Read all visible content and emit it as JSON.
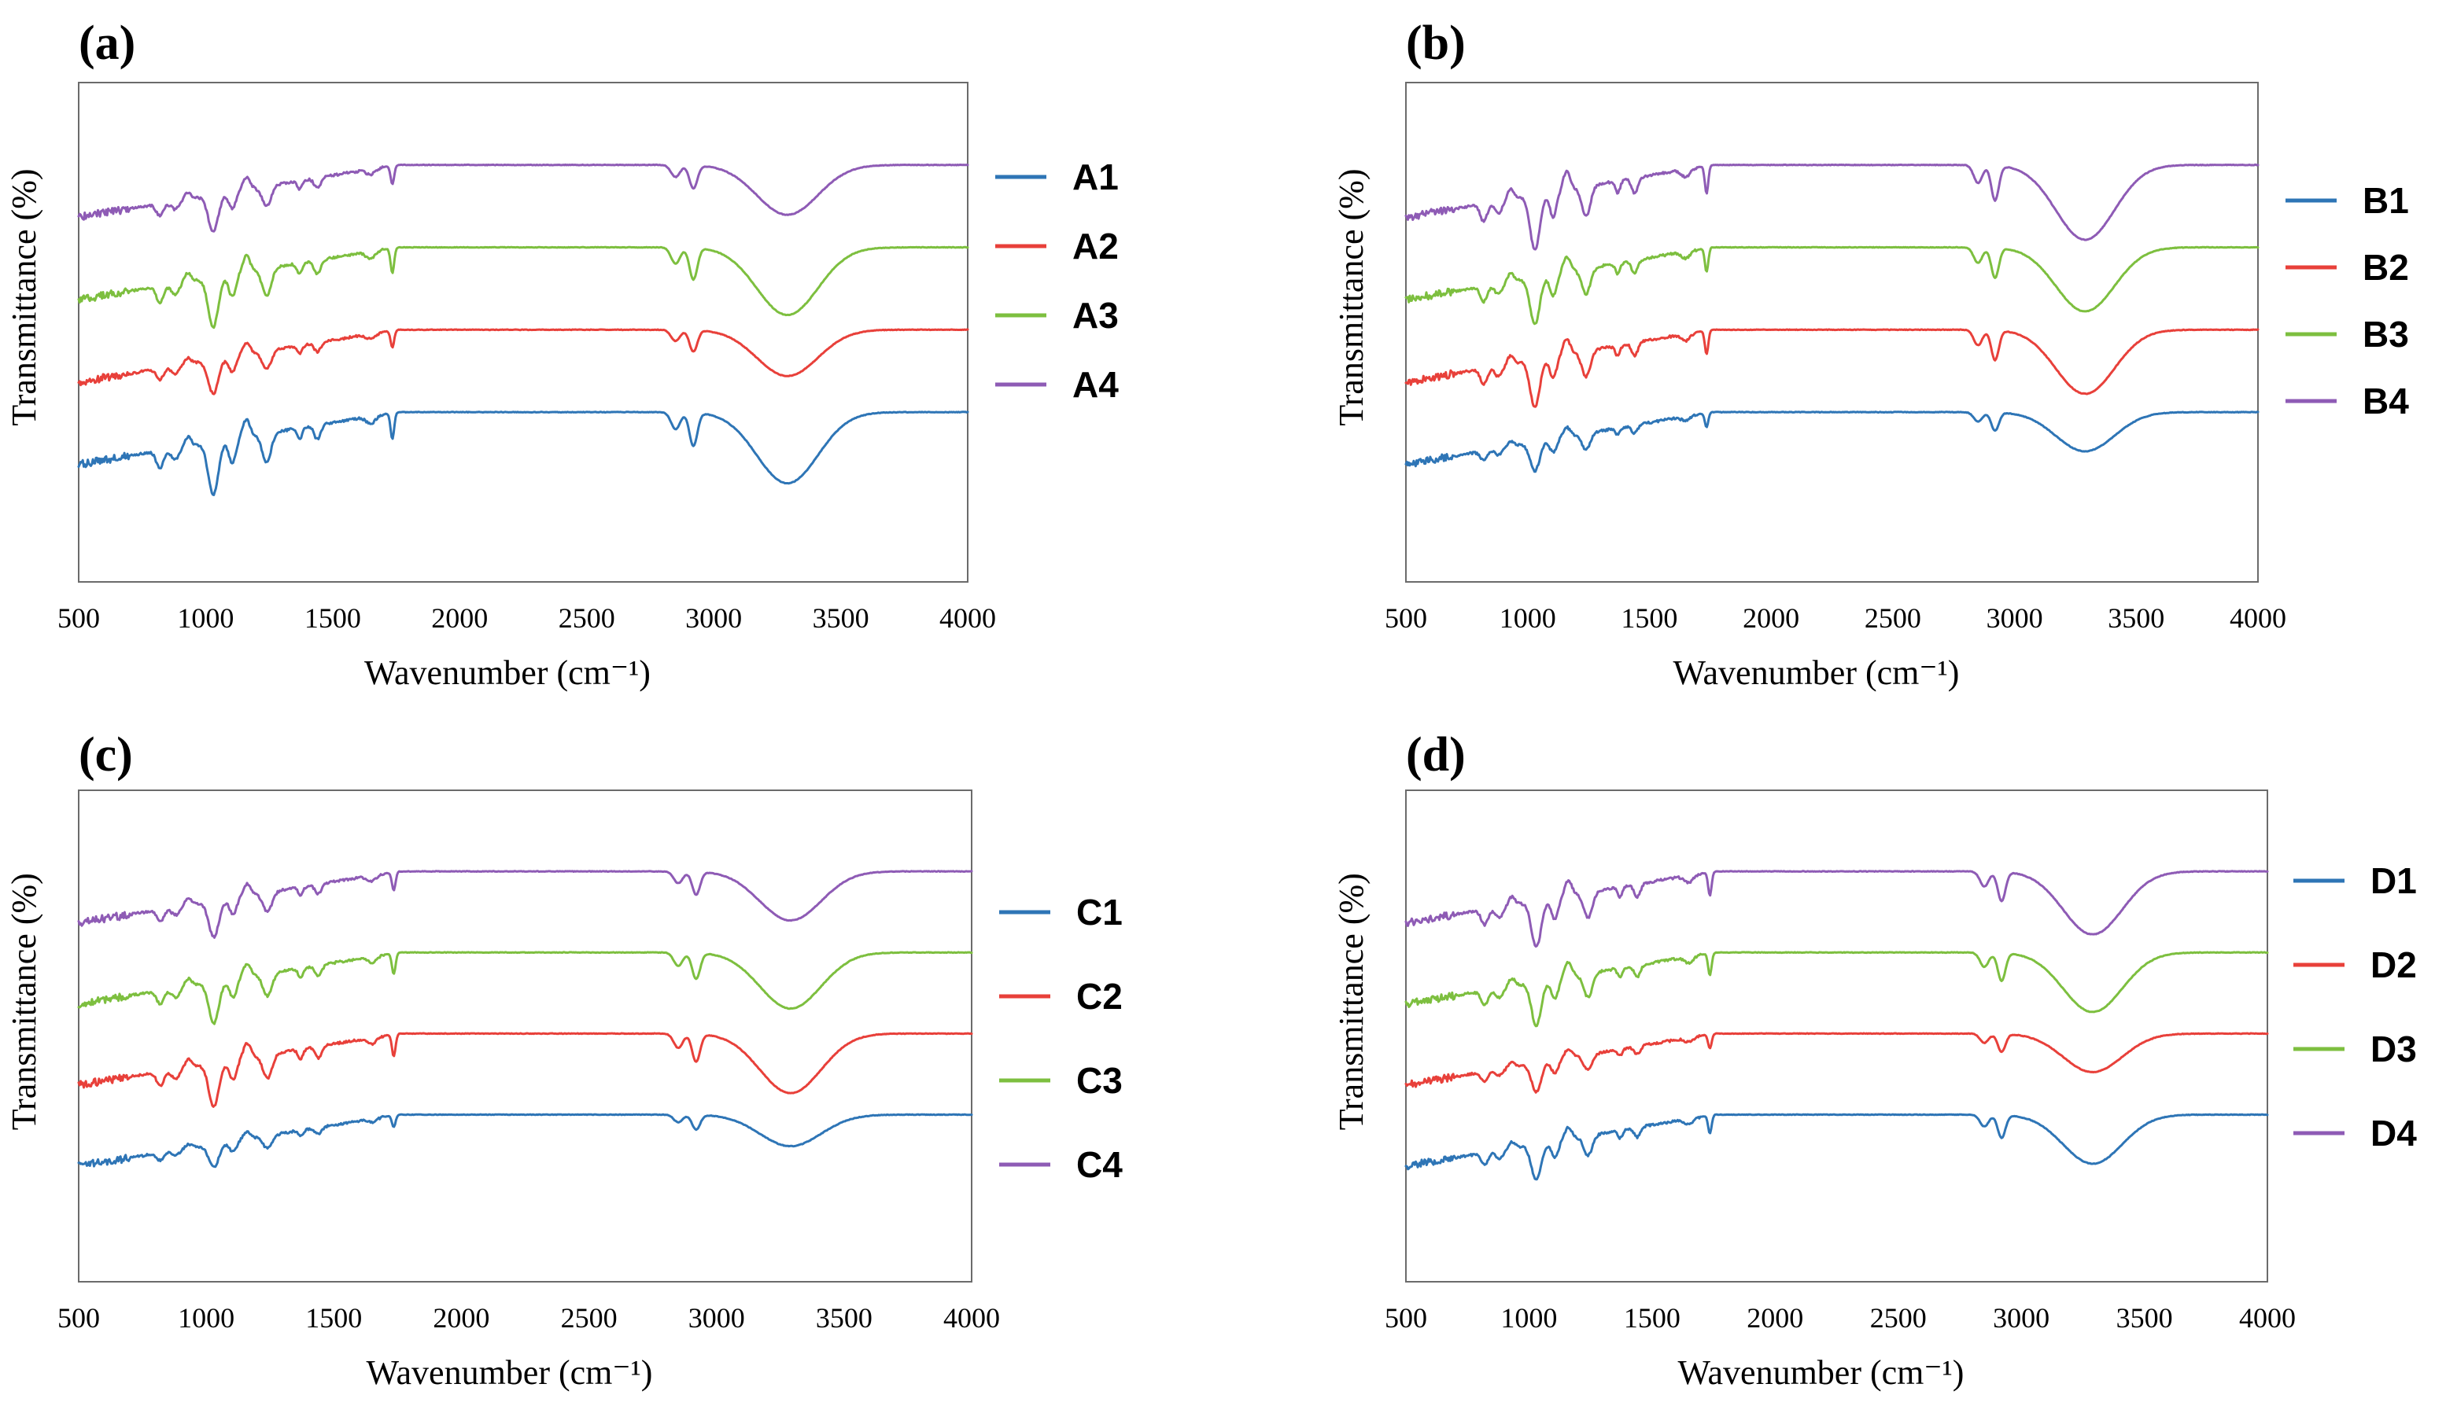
{
  "colors": {
    "series1": "#2e75b6",
    "series2": "#e8403a",
    "series3": "#7dbf3f",
    "series4": "#8e5bb5"
  },
  "chart_data": [
    {
      "type": "line",
      "panel_label": "(a)",
      "xlabel": "Wavenumber (cm⁻¹)",
      "ylabel": "Transmittance (%)",
      "xlim": [
        500,
        4000
      ],
      "xticks": [
        "500",
        "1000",
        "1500",
        "2000",
        "2500",
        "3000",
        "3500",
        "4000"
      ],
      "legend_position": "right",
      "series": [
        {
          "name": "A1",
          "color": "#2e75b6",
          "baseline": 0.0
        },
        {
          "name": "A2",
          "color": "#e8403a",
          "baseline": 1.0
        },
        {
          "name": "A3",
          "color": "#7dbf3f",
          "baseline": 2.0
        },
        {
          "name": "A4",
          "color": "#8e5bb5",
          "baseline": 3.0
        }
      ]
    },
    {
      "type": "line",
      "panel_label": "(b)",
      "xlabel": "Wavenumber (cm⁻¹)",
      "ylabel": "Transmittance (%)",
      "xlim": [
        500,
        4000
      ],
      "xticks": [
        "500",
        "1000",
        "1500",
        "2000",
        "2500",
        "3000",
        "3500",
        "4000"
      ],
      "legend_position": "right",
      "series": [
        {
          "name": "B1",
          "color": "#2e75b6",
          "baseline": 0.0
        },
        {
          "name": "B2",
          "color": "#e8403a",
          "baseline": 1.0
        },
        {
          "name": "B3",
          "color": "#7dbf3f",
          "baseline": 2.0
        },
        {
          "name": "B4",
          "color": "#8e5bb5",
          "baseline": 3.0
        }
      ]
    },
    {
      "type": "line",
      "panel_label": "(c)",
      "xlabel": "Wavenumber (cm⁻¹)",
      "ylabel": "Transmittance (%)",
      "xlim": [
        500,
        4000
      ],
      "xticks": [
        "500",
        "1000",
        "1500",
        "2000",
        "2500",
        "3000",
        "3500",
        "4000"
      ],
      "legend_position": "right",
      "series": [
        {
          "name": "C1",
          "color": "#2e75b6",
          "baseline": 0.0
        },
        {
          "name": "C2",
          "color": "#e8403a",
          "baseline": 1.0
        },
        {
          "name": "C3",
          "color": "#7dbf3f",
          "baseline": 2.0
        },
        {
          "name": "C4",
          "color": "#8e5bb5",
          "baseline": 3.0
        }
      ]
    },
    {
      "type": "line",
      "panel_label": "(d)",
      "xlabel": "Wavenumber (cm⁻¹)",
      "ylabel": "Transmittance (%)",
      "xlim": [
        500,
        4000
      ],
      "xticks": [
        "500",
        "1000",
        "1500",
        "2000",
        "2500",
        "3000",
        "3500",
        "4000"
      ],
      "legend_position": "right",
      "series": [
        {
          "name": "D1",
          "color": "#2e75b6",
          "baseline": 0.0
        },
        {
          "name": "D2",
          "color": "#e8403a",
          "baseline": 1.0
        },
        {
          "name": "D3",
          "color": "#7dbf3f",
          "baseline": 2.0
        },
        {
          "name": "D4",
          "color": "#8e5bb5",
          "baseline": 3.0
        }
      ]
    }
  ]
}
